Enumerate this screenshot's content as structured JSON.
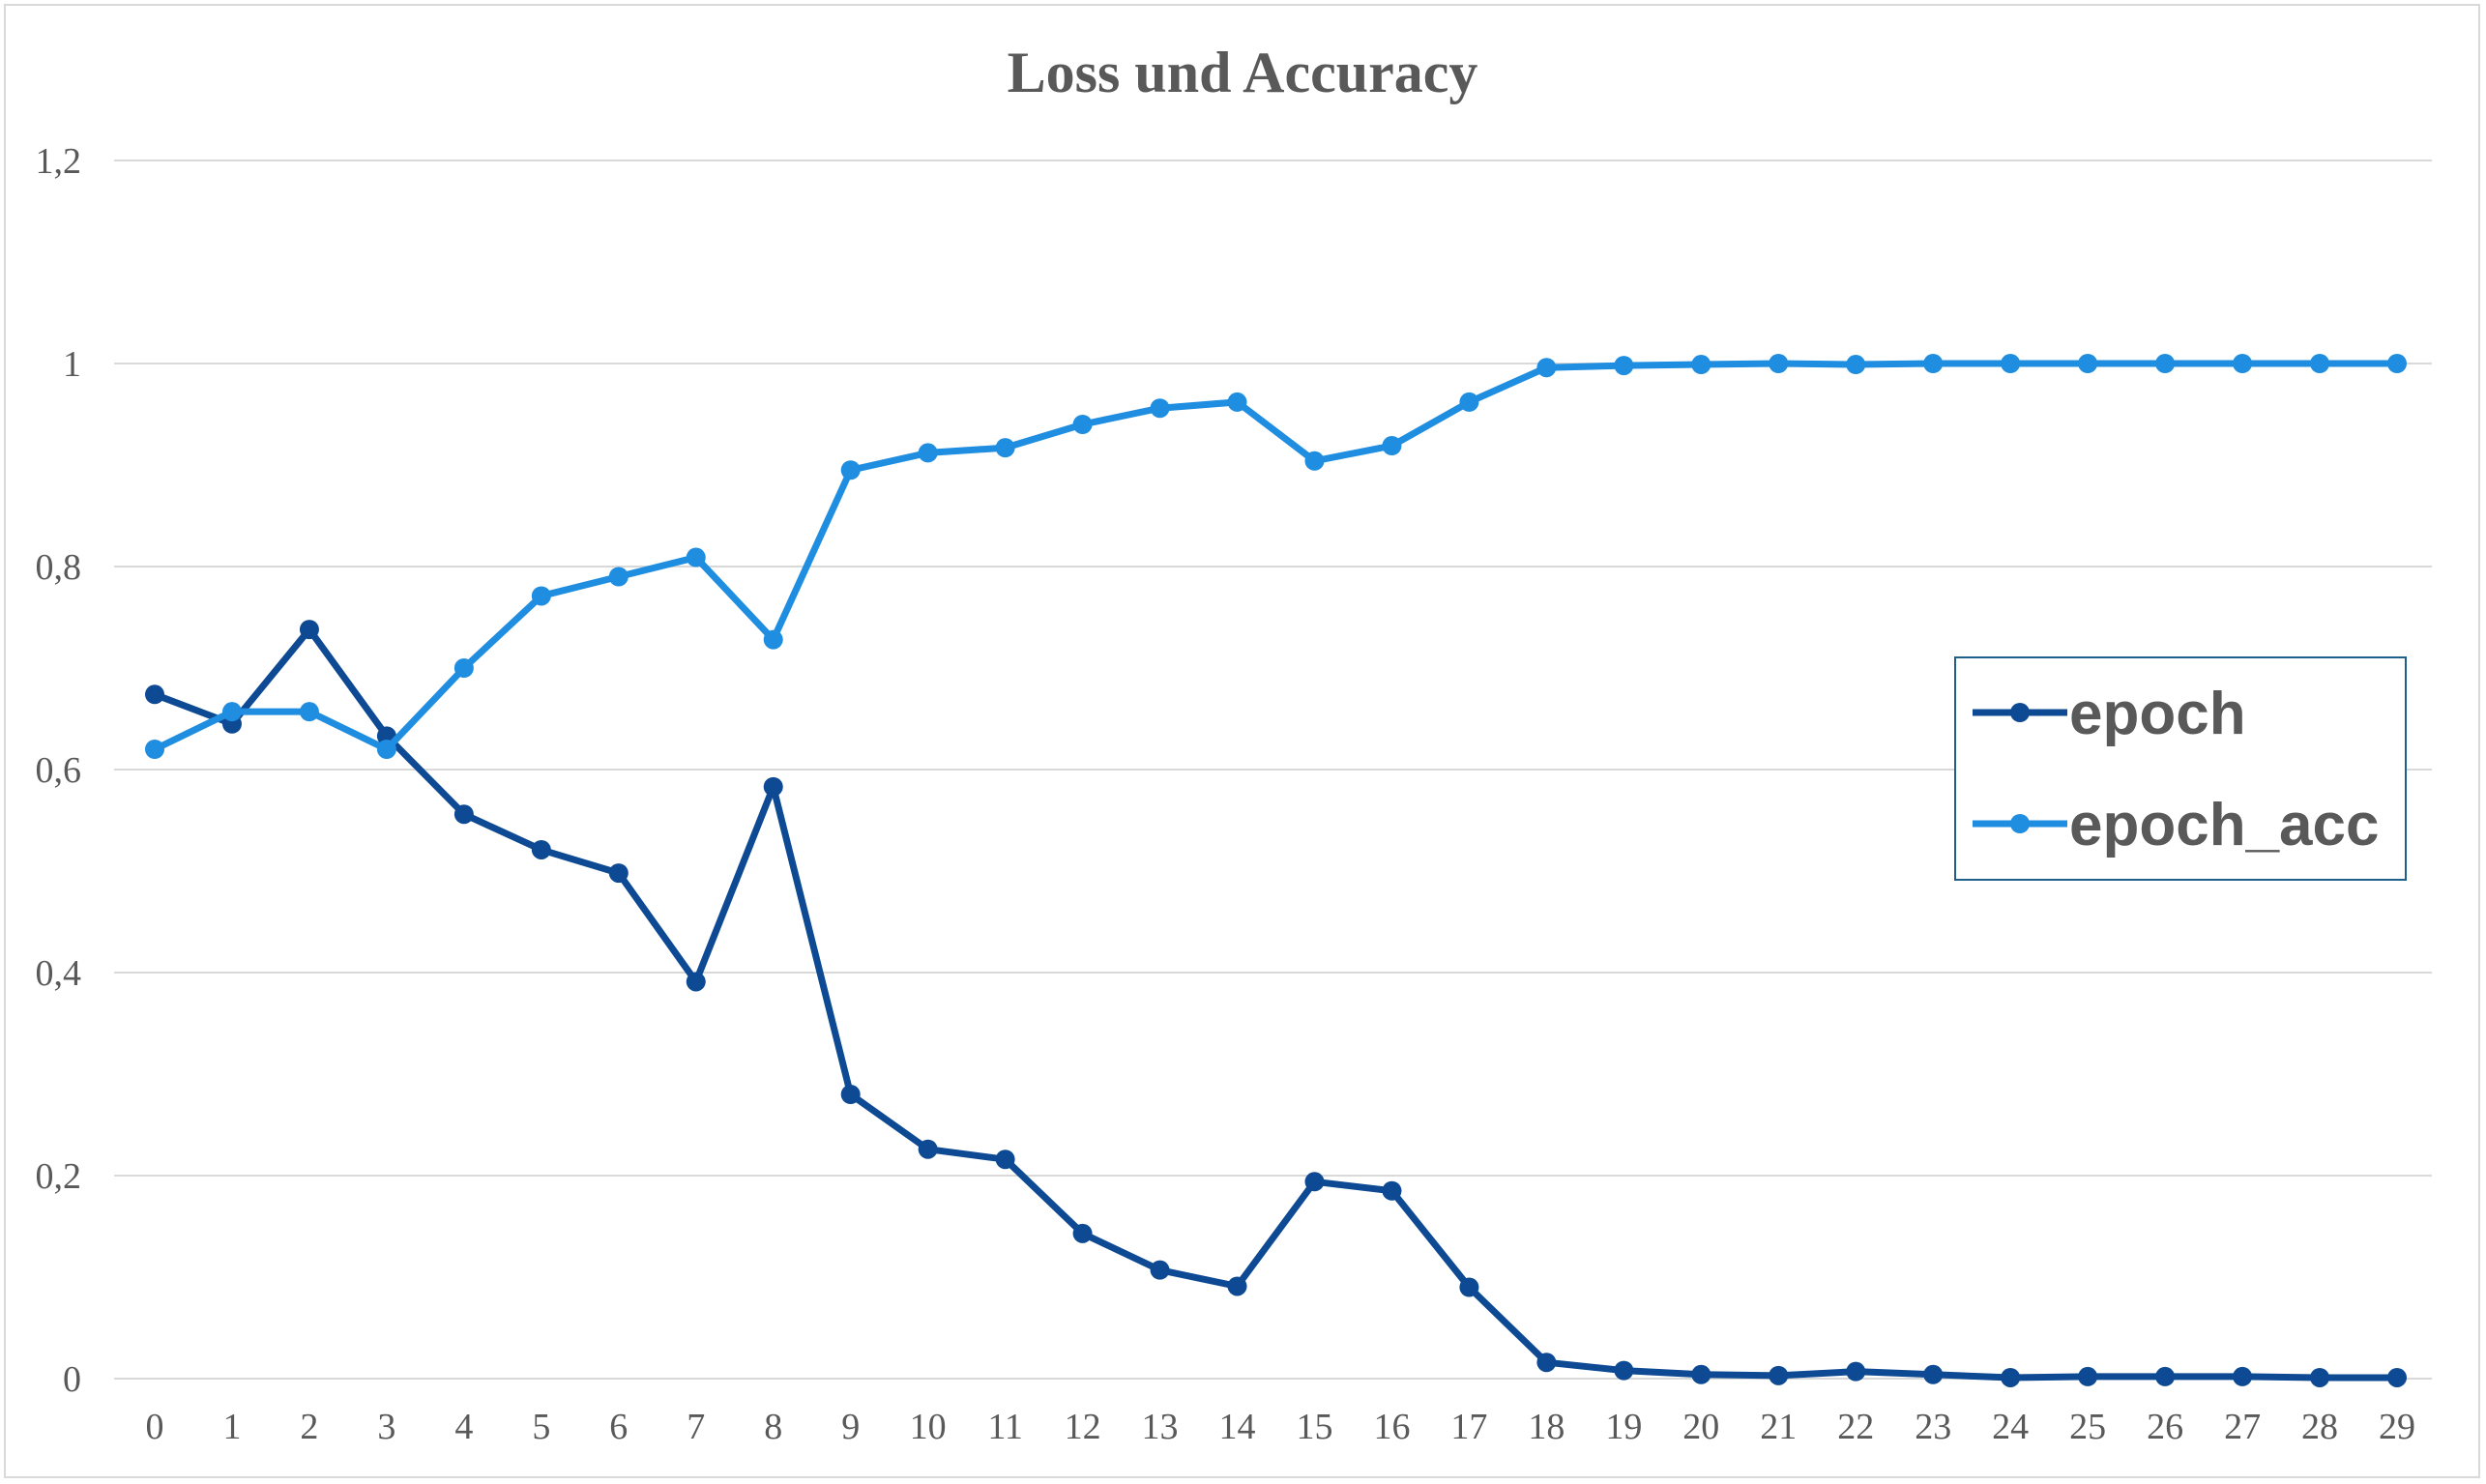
{
  "chart_data": {
    "type": "line",
    "title": "Loss und Accuracy",
    "xlabel": "",
    "ylabel": "",
    "categories": [
      "0",
      "1",
      "2",
      "3",
      "4",
      "5",
      "6",
      "7",
      "8",
      "9",
      "10",
      "11",
      "12",
      "13",
      "14",
      "15",
      "16",
      "17",
      "18",
      "19",
      "20",
      "21",
      "22",
      "23",
      "24",
      "25",
      "26",
      "27",
      "28",
      "29"
    ],
    "y_ticks": [
      "0",
      "0,2",
      "0,4",
      "0,6",
      "0,8",
      "1",
      "1,2"
    ],
    "ylim": [
      0,
      1.2
    ],
    "grid": true,
    "legend_position": "right",
    "series": [
      {
        "name": "epoch",
        "color": "#0d4a93",
        "values": [
          0.674,
          0.645,
          0.738,
          0.633,
          0.556,
          0.521,
          0.498,
          0.391,
          0.583,
          0.28,
          0.226,
          0.216,
          0.143,
          0.107,
          0.091,
          0.194,
          0.185,
          0.09,
          0.016,
          0.008,
          0.004,
          0.003,
          0.007,
          0.004,
          0.001,
          0.002,
          0.002,
          0.002,
          0.001,
          0.001
        ]
      },
      {
        "name": "epoch_acc",
        "color": "#1f8de0",
        "values": [
          0.62,
          0.657,
          0.657,
          0.62,
          0.7,
          0.771,
          0.79,
          0.809,
          0.728,
          0.895,
          0.912,
          0.917,
          0.94,
          0.956,
          0.962,
          0.904,
          0.919,
          0.962,
          0.996,
          0.998,
          0.999,
          1.0,
          0.999,
          1.0,
          1.0,
          1.0,
          1.0,
          1.0,
          1.0,
          1.0
        ]
      }
    ]
  }
}
